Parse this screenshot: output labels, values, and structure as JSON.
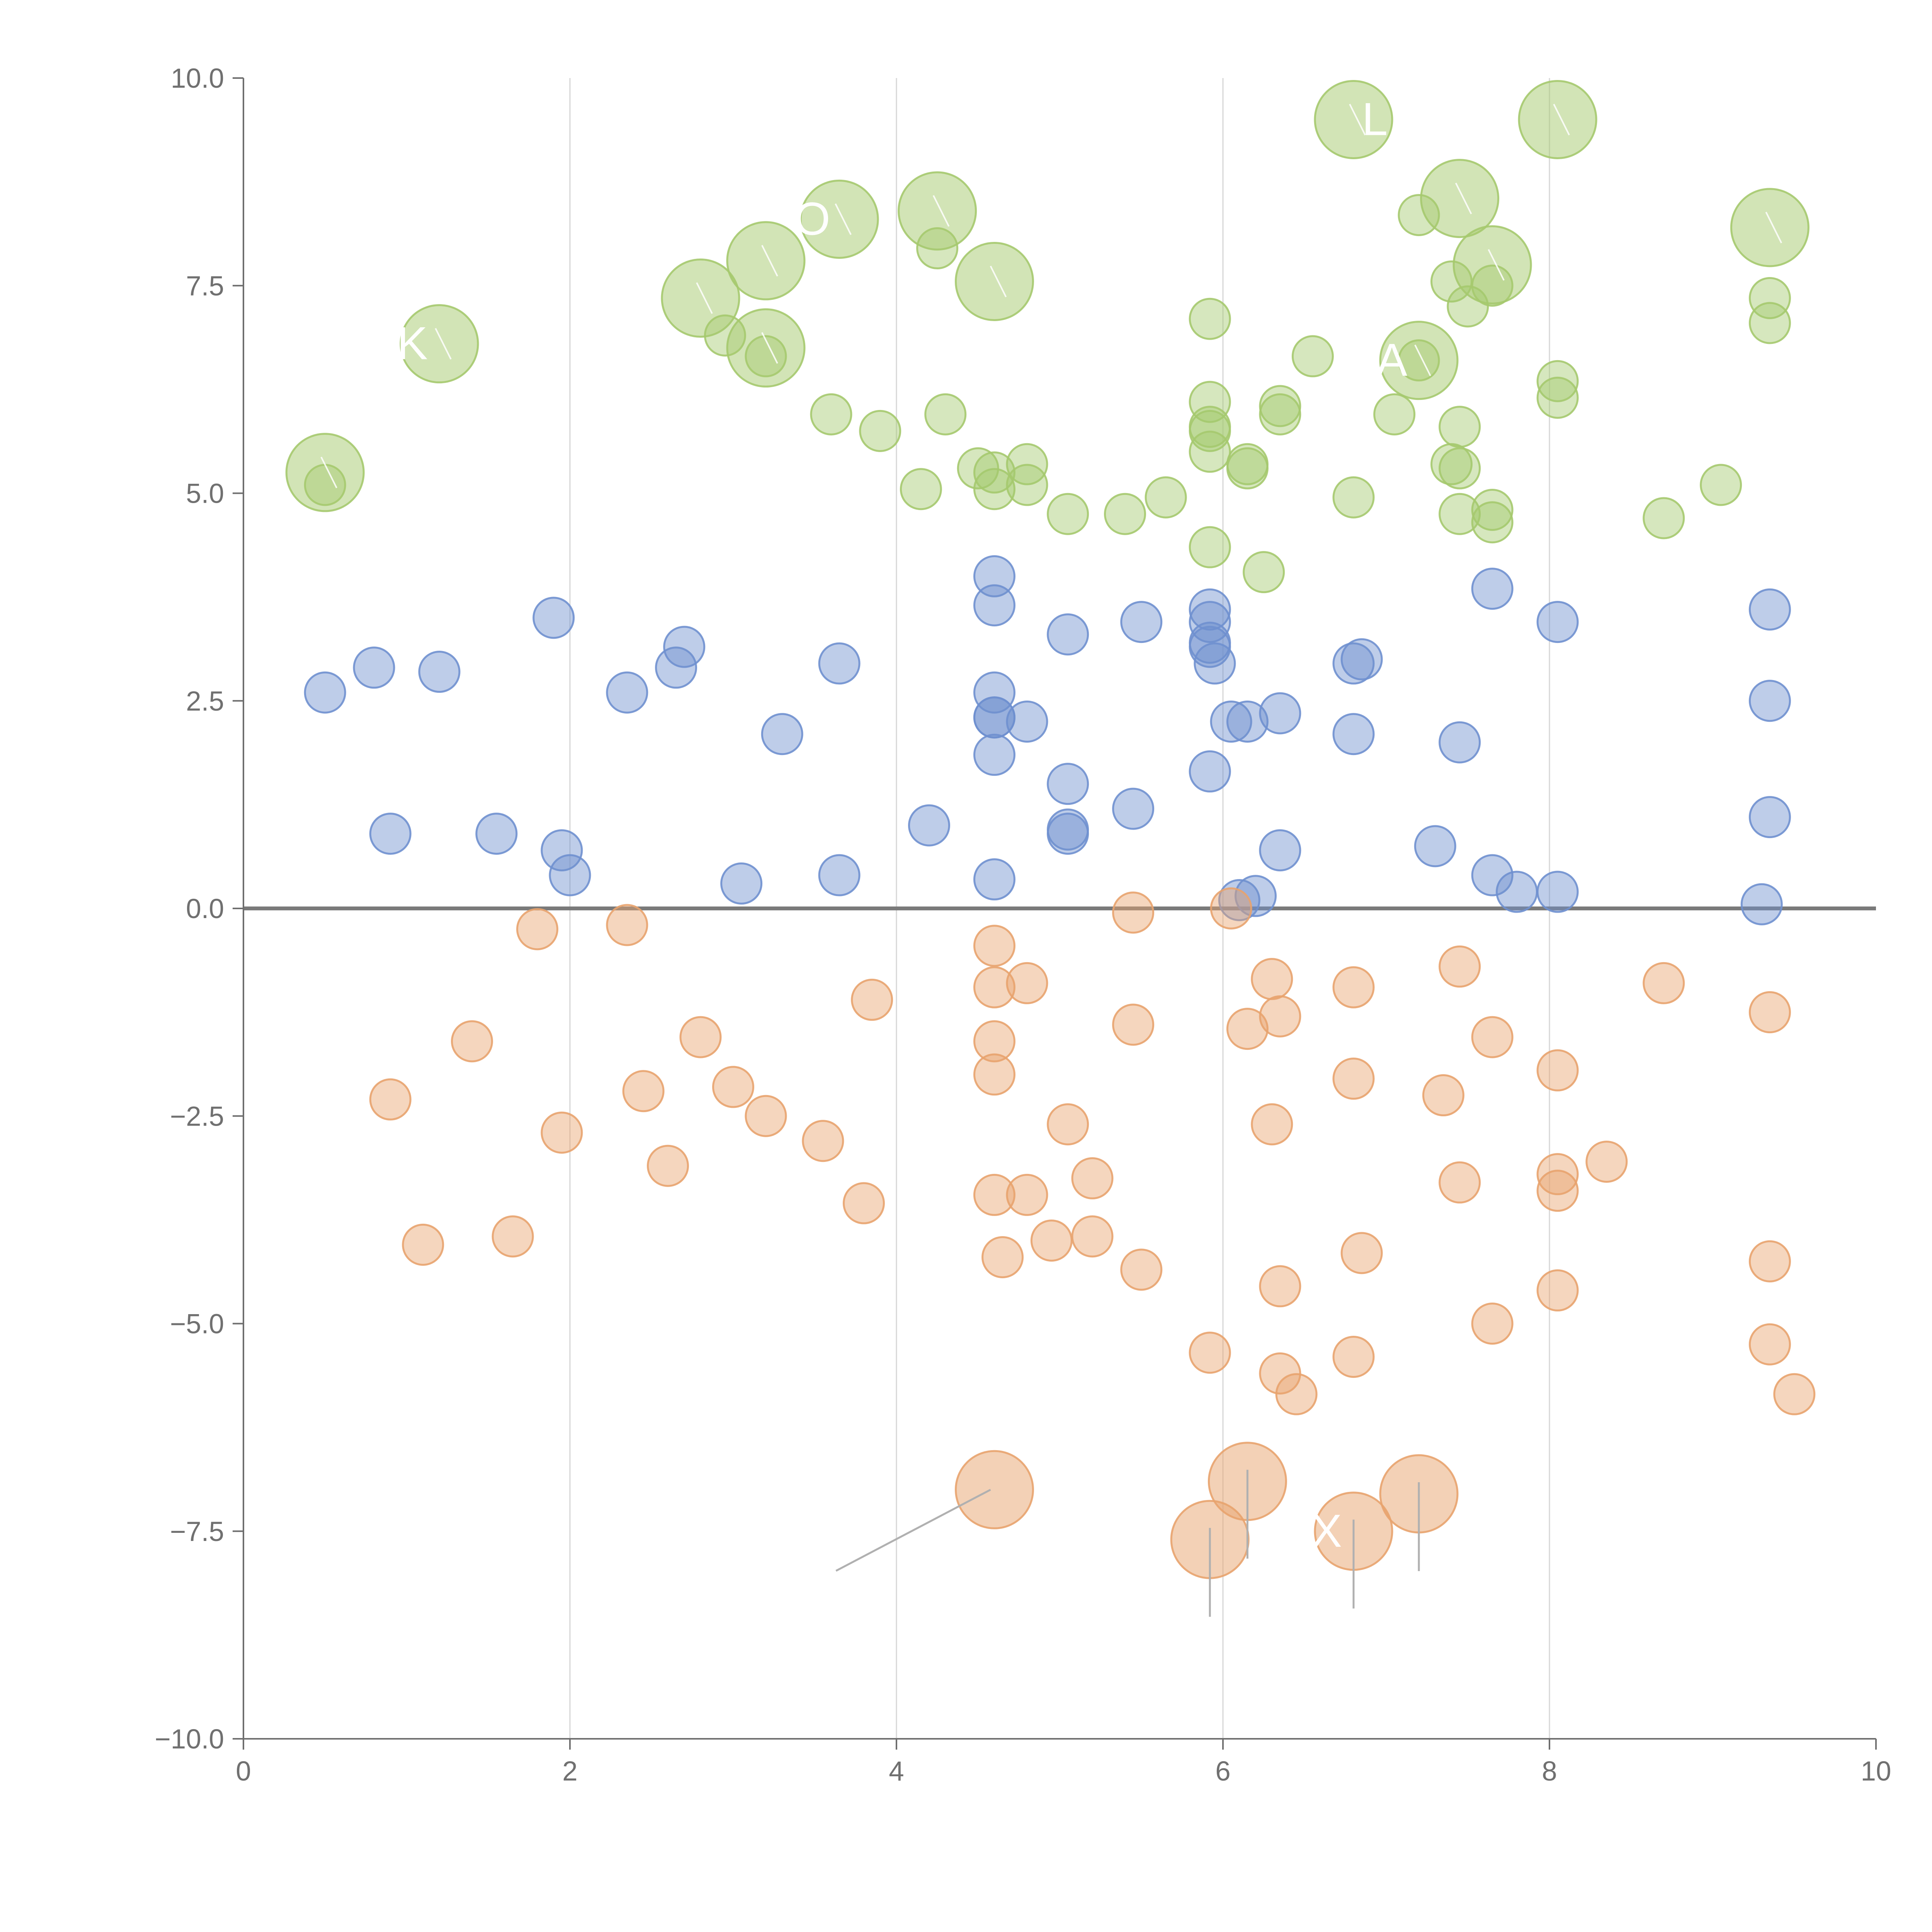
{
  "chart_data": {
    "type": "scatter",
    "title": "",
    "xlabel": "",
    "ylabel": "",
    "xlim": [
      0,
      10
    ],
    "ylim": [
      -10,
      10
    ],
    "x_ticks": [
      0,
      2,
      4,
      6,
      8,
      10
    ],
    "y_ticks": [
      -10.0,
      -7.5,
      -5.0,
      -2.5,
      0.0,
      2.5,
      5.0,
      7.5,
      10.0
    ],
    "x_tick_labels": [
      "0",
      "2",
      "4",
      "6",
      "8",
      "10"
    ],
    "y_tick_labels": [
      "−10.0",
      "−7.5",
      "−5.0",
      "−2.5",
      "0.0",
      "2.5",
      "5.0",
      "7.5",
      "10.0"
    ],
    "grid": "vertical",
    "reference_line_y": 0,
    "legend": "none",
    "series": [
      {
        "name": "green",
        "color": "#a5c96e",
        "points": [
          [
            0.5,
            5.1
          ],
          [
            2.95,
            6.9
          ],
          [
            3.6,
            5.95
          ],
          [
            3.9,
            5.75
          ],
          [
            4.25,
            7.95
          ],
          [
            4.3,
            5.95
          ],
          [
            4.15,
            5.05
          ],
          [
            4.5,
            5.3
          ],
          [
            4.6,
            5.05
          ],
          [
            4.6,
            5.25
          ],
          [
            4.8,
            5.35
          ],
          [
            4.8,
            5.1
          ],
          [
            5.05,
            4.75
          ],
          [
            5.4,
            4.75
          ],
          [
            5.65,
            4.95
          ],
          [
            5.92,
            7.1
          ],
          [
            5.92,
            6.1
          ],
          [
            5.92,
            5.75
          ],
          [
            5.92,
            5.8
          ],
          [
            5.92,
            5.5
          ],
          [
            5.92,
            4.35
          ],
          [
            6.15,
            5.35
          ],
          [
            6.15,
            5.3
          ],
          [
            6.25,
            4.05
          ],
          [
            6.35,
            6.05
          ],
          [
            6.35,
            5.95
          ],
          [
            6.55,
            6.65
          ],
          [
            6.8,
            4.95
          ],
          [
            7.05,
            5.95
          ],
          [
            7.2,
            8.35
          ],
          [
            7.2,
            6.6
          ],
          [
            7.4,
            7.55
          ],
          [
            7.4,
            5.35
          ],
          [
            7.45,
            5.3
          ],
          [
            7.45,
            5.8
          ],
          [
            7.45,
            4.75
          ],
          [
            7.5,
            7.25
          ],
          [
            7.65,
            7.5
          ],
          [
            7.65,
            4.8
          ],
          [
            7.65,
            4.65
          ],
          [
            8.05,
            6.35
          ],
          [
            8.05,
            6.15
          ],
          [
            8.7,
            4.7
          ],
          [
            9.05,
            5.1
          ],
          [
            9.35,
            7.35
          ],
          [
            9.35,
            7.05
          ],
          [
            3.2,
            6.65
          ]
        ],
        "labeled_points": [
          [
            0.5,
            5.25,
            "",
            ""
          ],
          [
            1.2,
            6.8,
            "K",
            "left"
          ],
          [
            2.8,
            7.35,
            "",
            ""
          ],
          [
            3.2,
            7.8,
            "",
            ""
          ],
          [
            3.2,
            6.75,
            "",
            ""
          ],
          [
            3.65,
            8.3,
            "O",
            "left"
          ],
          [
            4.25,
            8.4,
            "",
            ""
          ],
          [
            4.6,
            7.55,
            "",
            ""
          ],
          [
            6.8,
            9.5,
            "L",
            "right"
          ],
          [
            7.45,
            8.55,
            "",
            ""
          ],
          [
            7.65,
            7.75,
            "",
            ""
          ],
          [
            8.05,
            9.5,
            "",
            ""
          ],
          [
            9.35,
            8.2,
            "",
            ""
          ],
          [
            7.2,
            6.6,
            "A",
            "left"
          ]
        ]
      },
      {
        "name": "blue",
        "color": "#6f90cf",
        "points": [
          [
            0.5,
            2.6
          ],
          [
            0.8,
            2.9
          ],
          [
            1.2,
            2.85
          ],
          [
            1.9,
            3.5
          ],
          [
            0.9,
            0.9
          ],
          [
            1.55,
            0.9
          ],
          [
            1.95,
            0.7
          ],
          [
            2.0,
            0.4
          ],
          [
            2.35,
            2.6
          ],
          [
            2.65,
            2.9
          ],
          [
            2.7,
            3.15
          ],
          [
            3.05,
            0.3
          ],
          [
            3.3,
            2.1
          ],
          [
            3.65,
            2.95
          ],
          [
            3.65,
            0.4
          ],
          [
            4.2,
            1.0
          ],
          [
            4.6,
            4.0
          ],
          [
            4.6,
            3.65
          ],
          [
            4.6,
            2.6
          ],
          [
            4.6,
            2.3
          ],
          [
            4.6,
            2.3
          ],
          [
            4.6,
            1.85
          ],
          [
            4.6,
            0.35
          ],
          [
            4.8,
            2.25
          ],
          [
            5.05,
            3.3
          ],
          [
            5.05,
            1.5
          ],
          [
            5.05,
            0.95
          ],
          [
            5.05,
            0.9
          ],
          [
            5.5,
            3.45
          ],
          [
            5.45,
            1.2
          ],
          [
            5.92,
            3.6
          ],
          [
            5.92,
            3.45
          ],
          [
            5.92,
            3.2
          ],
          [
            5.92,
            3.15
          ],
          [
            5.95,
            2.95
          ],
          [
            5.92,
            1.65
          ],
          [
            6.05,
            2.25
          ],
          [
            6.15,
            2.25
          ],
          [
            6.1,
            0.1
          ],
          [
            6.2,
            0.15
          ],
          [
            6.35,
            2.35
          ],
          [
            6.35,
            0.7
          ],
          [
            6.8,
            2.95
          ],
          [
            6.8,
            2.1
          ],
          [
            6.85,
            3.0
          ],
          [
            7.3,
            0.75
          ],
          [
            7.45,
            2.0
          ],
          [
            7.65,
            3.85
          ],
          [
            7.65,
            0.4
          ],
          [
            7.8,
            0.2
          ],
          [
            8.05,
            3.45
          ],
          [
            8.05,
            0.2
          ],
          [
            9.3,
            0.05
          ],
          [
            9.35,
            3.6
          ],
          [
            9.35,
            2.5
          ],
          [
            9.35,
            1.1
          ]
        ]
      },
      {
        "name": "orange",
        "color": "#e8a36e",
        "points": [
          [
            0.9,
            -2.3
          ],
          [
            1.1,
            -4.05
          ],
          [
            1.4,
            -1.6
          ],
          [
            1.65,
            -3.95
          ],
          [
            1.8,
            -0.25
          ],
          [
            1.95,
            -2.7
          ],
          [
            2.35,
            -0.2
          ],
          [
            2.45,
            -2.2
          ],
          [
            2.6,
            -3.1
          ],
          [
            2.8,
            -1.55
          ],
          [
            3.0,
            -2.15
          ],
          [
            3.2,
            -2.5
          ],
          [
            3.55,
            -2.8
          ],
          [
            3.8,
            -3.55
          ],
          [
            3.85,
            -1.1
          ],
          [
            4.6,
            -0.45
          ],
          [
            4.6,
            -0.95
          ],
          [
            4.6,
            -1.6
          ],
          [
            4.6,
            -2.0
          ],
          [
            4.6,
            -3.45
          ],
          [
            4.65,
            -4.2
          ],
          [
            4.8,
            -0.9
          ],
          [
            4.8,
            -3.45
          ],
          [
            4.95,
            -4.0
          ],
          [
            5.05,
            -2.6
          ],
          [
            5.2,
            -3.25
          ],
          [
            5.2,
            -3.95
          ],
          [
            5.45,
            -0.05
          ],
          [
            5.45,
            -1.4
          ],
          [
            5.5,
            -4.35
          ],
          [
            5.92,
            -5.35
          ],
          [
            6.05,
            0.0
          ],
          [
            6.15,
            -1.45
          ],
          [
            6.3,
            -0.85
          ],
          [
            6.35,
            -1.3
          ],
          [
            6.3,
            -2.6
          ],
          [
            6.35,
            -4.55
          ],
          [
            6.35,
            -5.6
          ],
          [
            6.45,
            -5.85
          ],
          [
            6.8,
            -0.95
          ],
          [
            6.8,
            -2.05
          ],
          [
            6.85,
            -4.15
          ],
          [
            6.8,
            -5.4
          ],
          [
            7.35,
            -2.25
          ],
          [
            7.45,
            -0.7
          ],
          [
            7.45,
            -3.3
          ],
          [
            7.65,
            -1.55
          ],
          [
            7.65,
            -5.0
          ],
          [
            8.05,
            -1.95
          ],
          [
            8.05,
            -3.2
          ],
          [
            8.05,
            -3.4
          ],
          [
            8.05,
            -4.6
          ],
          [
            8.35,
            -3.05
          ],
          [
            8.7,
            -0.9
          ],
          [
            9.35,
            -1.25
          ],
          [
            9.35,
            -4.25
          ],
          [
            9.35,
            -5.25
          ],
          [
            9.5,
            -5.85
          ]
        ],
        "labeled_points": [
          [
            4.6,
            -7.0,
            "",
            ""
          ],
          [
            5.92,
            -7.6,
            "",
            ""
          ],
          [
            6.15,
            -6.9,
            "",
            ""
          ],
          [
            6.8,
            -7.5,
            "X",
            "left"
          ],
          [
            7.2,
            -7.05,
            "",
            ""
          ]
        ]
      }
    ]
  }
}
